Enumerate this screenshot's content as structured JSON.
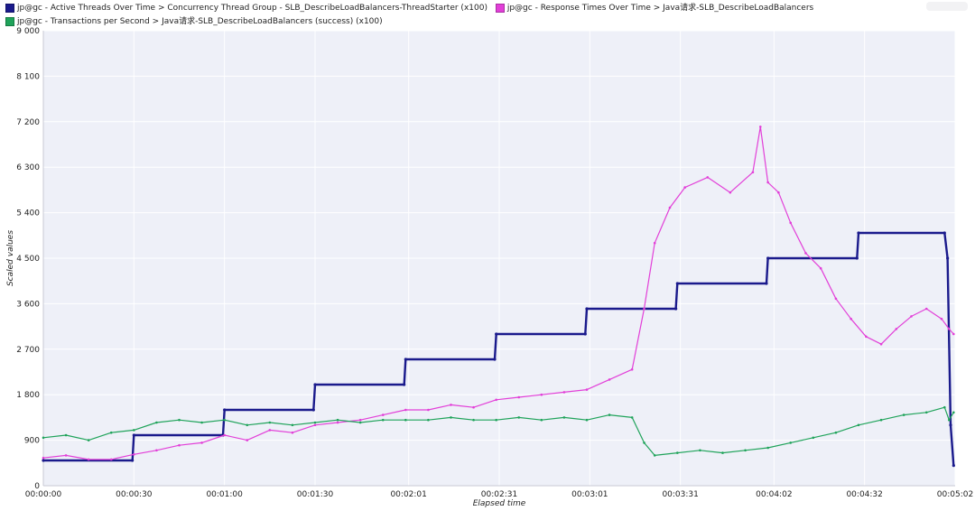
{
  "legend": {
    "items": [
      {
        "label": "jp@gc - Active Threads Over Time > Concurrency Thread Group - SLB_DescribeLoadBalancers-ThreadStarter (x100)",
        "color": "#1a1a8c"
      },
      {
        "label": "jp@gc - Response Times Over Time > Java请求-SLB_DescribeLoadBalancers",
        "color": "#e23fd8"
      },
      {
        "label": "jp@gc - Transactions per Second > Java请求-SLB_DescribeLoadBalancers (success) (x100)",
        "color": "#1fa35a"
      }
    ]
  },
  "chart_data": {
    "type": "line",
    "xlabel": "Elapsed time",
    "ylabel": "Scaled values",
    "ylim": [
      0,
      9000
    ],
    "xlim": [
      "00:00:00",
      "00:05:02"
    ],
    "x_unit": "seconds",
    "yticks": [
      0,
      900,
      1800,
      2700,
      3600,
      4500,
      5400,
      6300,
      7200,
      8100,
      9000
    ],
    "ytick_labels": [
      "0",
      "900",
      "1 800",
      "2 700",
      "3 600",
      "4 500",
      "5 400",
      "6 300",
      "7 200",
      "8 100",
      "9 000"
    ],
    "xticks": [
      0,
      60,
      120,
      180,
      241,
      302
    ],
    "xtick_labels": [
      "00:00:00",
      "00:00:30",
      "00:01:00",
      "00:01:30",
      "00:02:01",
      "00:02:31",
      "00:03:01",
      "00:03:31",
      "00:04:02",
      "00:04:32",
      "00:05:02"
    ],
    "xtick_positions": [
      0,
      30,
      60,
      90,
      121,
      151,
      181,
      211,
      242,
      272,
      302
    ],
    "grid": true,
    "colors": {
      "background": "#eef0f8",
      "grid": "#ffffff",
      "axis": "#c8cad4"
    },
    "series": [
      {
        "name": "jp@gc - Active Threads Over Time > Concurrency Thread Group - SLB_DescribeLoadBalancers-ThreadStarter (x100)",
        "color": "#1a1a8c",
        "points": [
          [
            0,
            500
          ],
          [
            59,
            500
          ],
          [
            60,
            1000
          ],
          [
            119,
            1000
          ],
          [
            120,
            1500
          ],
          [
            179,
            1500
          ],
          [
            180,
            2000
          ],
          [
            239,
            2000
          ],
          [
            240,
            2500
          ],
          [
            299,
            2500
          ],
          [
            300,
            3000
          ],
          [
            359,
            3000
          ],
          [
            360,
            3500
          ],
          [
            419,
            3500
          ],
          [
            420,
            4000
          ],
          [
            479,
            4000
          ],
          [
            480,
            4500
          ],
          [
            539,
            4500
          ],
          [
            540,
            5000
          ],
          [
            597,
            5000
          ],
          [
            599,
            4500
          ],
          [
            601,
            1200
          ],
          [
            603,
            400
          ]
        ],
        "x_scale": "steps_of_0.5s"
      },
      {
        "name": "jp@gc - Response Times Over Time > Java请求-SLB_DescribeLoadBalancers",
        "color": "#e23fd8",
        "points": [
          [
            0,
            550
          ],
          [
            15,
            600
          ],
          [
            30,
            520
          ],
          [
            45,
            520
          ],
          [
            60,
            620
          ],
          [
            75,
            700
          ],
          [
            90,
            800
          ],
          [
            105,
            850
          ],
          [
            120,
            1000
          ],
          [
            135,
            900
          ],
          [
            150,
            1100
          ],
          [
            165,
            1050
          ],
          [
            180,
            1200
          ],
          [
            195,
            1250
          ],
          [
            210,
            1300
          ],
          [
            225,
            1400
          ],
          [
            240,
            1500
          ],
          [
            255,
            1500
          ],
          [
            270,
            1600
          ],
          [
            285,
            1550
          ],
          [
            300,
            1700
          ],
          [
            315,
            1750
          ],
          [
            330,
            1800
          ],
          [
            345,
            1850
          ],
          [
            360,
            1900
          ],
          [
            375,
            2100
          ],
          [
            390,
            2300
          ],
          [
            398,
            3500
          ],
          [
            405,
            4800
          ],
          [
            415,
            5500
          ],
          [
            425,
            5900
          ],
          [
            440,
            6100
          ],
          [
            455,
            5800
          ],
          [
            470,
            6200
          ],
          [
            475,
            7100
          ],
          [
            480,
            6000
          ],
          [
            487,
            5800
          ],
          [
            495,
            5200
          ],
          [
            505,
            4600
          ],
          [
            515,
            4300
          ],
          [
            525,
            3700
          ],
          [
            535,
            3300
          ],
          [
            545,
            2950
          ],
          [
            555,
            2800
          ],
          [
            565,
            3100
          ],
          [
            575,
            3350
          ],
          [
            585,
            3500
          ],
          [
            595,
            3300
          ],
          [
            600,
            3100
          ],
          [
            603,
            3000
          ]
        ],
        "x_scale": "steps_of_0.5s"
      },
      {
        "name": "jp@gc - Transactions per Second > Java请求-SLB_DescribeLoadBalancers (success) (x100)",
        "color": "#1fa35a",
        "points": [
          [
            0,
            950
          ],
          [
            15,
            1000
          ],
          [
            30,
            900
          ],
          [
            45,
            1050
          ],
          [
            60,
            1100
          ],
          [
            75,
            1250
          ],
          [
            90,
            1300
          ],
          [
            105,
            1250
          ],
          [
            120,
            1300
          ],
          [
            135,
            1200
          ],
          [
            150,
            1250
          ],
          [
            165,
            1200
          ],
          [
            180,
            1250
          ],
          [
            195,
            1300
          ],
          [
            210,
            1250
          ],
          [
            225,
            1300
          ],
          [
            240,
            1300
          ],
          [
            255,
            1300
          ],
          [
            270,
            1350
          ],
          [
            285,
            1300
          ],
          [
            300,
            1300
          ],
          [
            315,
            1350
          ],
          [
            330,
            1300
          ],
          [
            345,
            1350
          ],
          [
            360,
            1300
          ],
          [
            375,
            1400
          ],
          [
            390,
            1350
          ],
          [
            398,
            850
          ],
          [
            405,
            600
          ],
          [
            420,
            650
          ],
          [
            435,
            700
          ],
          [
            450,
            650
          ],
          [
            465,
            700
          ],
          [
            480,
            750
          ],
          [
            495,
            850
          ],
          [
            510,
            950
          ],
          [
            525,
            1050
          ],
          [
            540,
            1200
          ],
          [
            555,
            1300
          ],
          [
            570,
            1400
          ],
          [
            585,
            1450
          ],
          [
            597,
            1550
          ],
          [
            600,
            1300
          ],
          [
            603,
            1450
          ]
        ],
        "x_scale": "steps_of_0.5s"
      }
    ]
  }
}
